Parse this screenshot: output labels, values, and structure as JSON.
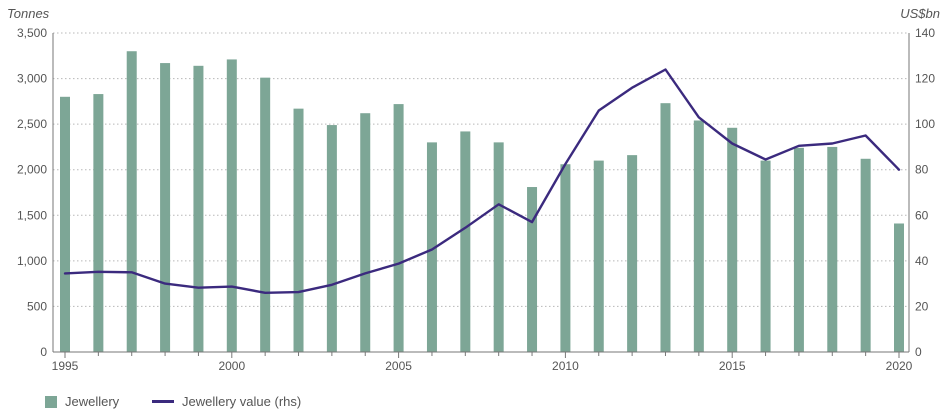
{
  "chart_data": {
    "type": "bar",
    "title": "",
    "left_axis_unit": "Tonnes",
    "right_axis_unit": "US$bn",
    "years": [
      1995,
      1996,
      1997,
      1998,
      1999,
      2000,
      2001,
      2002,
      2003,
      2004,
      2005,
      2006,
      2007,
      2008,
      2009,
      2010,
      2011,
      2012,
      2013,
      2014,
      2015,
      2016,
      2017,
      2018,
      2019,
      2020
    ],
    "x_tick_labels": [
      "1995",
      "2000",
      "2005",
      "2010",
      "2015",
      "2020"
    ],
    "left_axis": {
      "ylim": [
        0,
        3500
      ],
      "ticks": [
        "0",
        "500",
        "1,000",
        "1,500",
        "2,000",
        "2,500",
        "3,000",
        "3,500"
      ]
    },
    "right_axis": {
      "ylim": [
        0,
        140
      ],
      "ticks": [
        "0",
        "20",
        "40",
        "60",
        "80",
        "100",
        "120",
        "140"
      ]
    },
    "grid": true,
    "series": [
      {
        "name": "Jewellery",
        "type": "bar",
        "axis": "left",
        "color": "#7da696",
        "values": [
          2800,
          2830,
          3300,
          3170,
          3140,
          3210,
          3010,
          2670,
          2490,
          2620,
          2720,
          2300,
          2420,
          2300,
          1810,
          2060,
          2100,
          2160,
          2730,
          2540,
          2460,
          2100,
          2240,
          2250,
          2120,
          1410
        ]
      },
      {
        "name": "Jewellery value (rhs)",
        "type": "line",
        "axis": "right",
        "color": "#3b2a7e",
        "values": [
          34.5,
          35.2,
          35.0,
          30.0,
          28.2,
          28.7,
          26.0,
          26.3,
          29.5,
          34.5,
          38.8,
          45.0,
          54.5,
          64.8,
          57.0,
          82.5,
          106.0,
          116.0,
          124.0,
          103.0,
          91.5,
          84.5,
          90.5,
          91.5,
          95.0,
          80.0
        ]
      }
    ],
    "legend_position": "bottom-left"
  }
}
